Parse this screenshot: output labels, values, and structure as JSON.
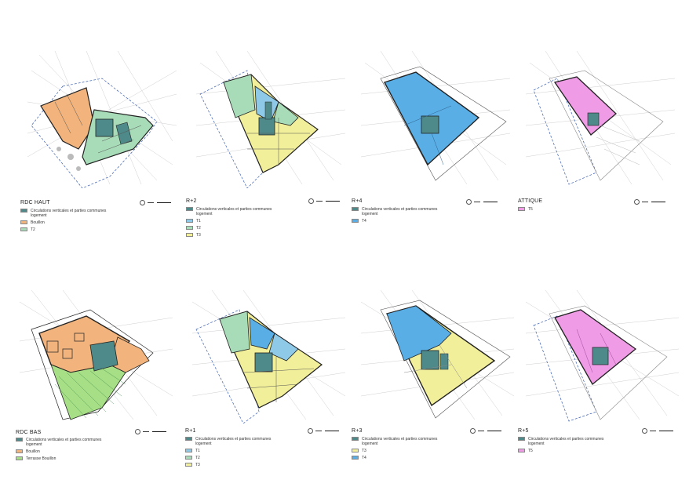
{
  "colors": {
    "circulation": "#4e8a8a",
    "bouillon": "#f2b47c",
    "t1": "#8ecae8",
    "t2": "#a8dcb8",
    "t3": "#f2ef9a",
    "t4": "#5aaee6",
    "t5": "#ef9be6",
    "terrasse": "#a7df86"
  },
  "plans": [
    {
      "id": "rdc-haut",
      "title": "RDC HAUT",
      "legend": [
        {
          "label": "Circulations verticales et parties communes logement",
          "color": "#4e8a8a"
        },
        {
          "label": "Bouillon",
          "color": "#f2b47c"
        },
        {
          "label": "T2",
          "color": "#a8dcb8"
        }
      ]
    },
    {
      "id": "r2",
      "title": "R+2",
      "legend": [
        {
          "label": "Circulations verticales et parties communes logement",
          "color": "#4e8a8a"
        },
        {
          "label": "T1",
          "color": "#8ecae8"
        },
        {
          "label": "T2",
          "color": "#a8dcb8"
        },
        {
          "label": "T3",
          "color": "#f2ef9a"
        }
      ]
    },
    {
      "id": "r4",
      "title": "R+4",
      "legend": [
        {
          "label": "Circulations verticales et parties communes logement",
          "color": "#4e8a8a"
        },
        {
          "label": "T4",
          "color": "#5aaee6"
        }
      ]
    },
    {
      "id": "attique",
      "title": "ATTIQUE",
      "legend": [
        {
          "label": "T5",
          "color": "#ef9be6"
        }
      ]
    },
    {
      "id": "rdc-bas",
      "title": "RDC BAS",
      "legend": [
        {
          "label": "Circulations verticales et parties communes logement",
          "color": "#4e8a8a"
        },
        {
          "label": "Bouillon",
          "color": "#f2b47c"
        },
        {
          "label": "Terrasse Bouillon",
          "color": "#a7df86"
        }
      ]
    },
    {
      "id": "r1",
      "title": "R+1",
      "legend": [
        {
          "label": "Circulations verticales et parties communes logement",
          "color": "#4e8a8a"
        },
        {
          "label": "T1",
          "color": "#8ecae8"
        },
        {
          "label": "T2",
          "color": "#a8dcb8"
        },
        {
          "label": "T3",
          "color": "#f2ef9a"
        }
      ]
    },
    {
      "id": "r3",
      "title": "R+3",
      "legend": [
        {
          "label": "Circulations verticales et parties communes logement",
          "color": "#4e8a8a"
        },
        {
          "label": "T3",
          "color": "#f2ef9a"
        },
        {
          "label": "T4",
          "color": "#5aaee6"
        }
      ]
    },
    {
      "id": "r5",
      "title": "R+5",
      "legend": [
        {
          "label": "Circulations verticales et parties communes logement",
          "color": "#4e8a8a"
        },
        {
          "label": "T5",
          "color": "#ef9be6"
        }
      ]
    }
  ]
}
